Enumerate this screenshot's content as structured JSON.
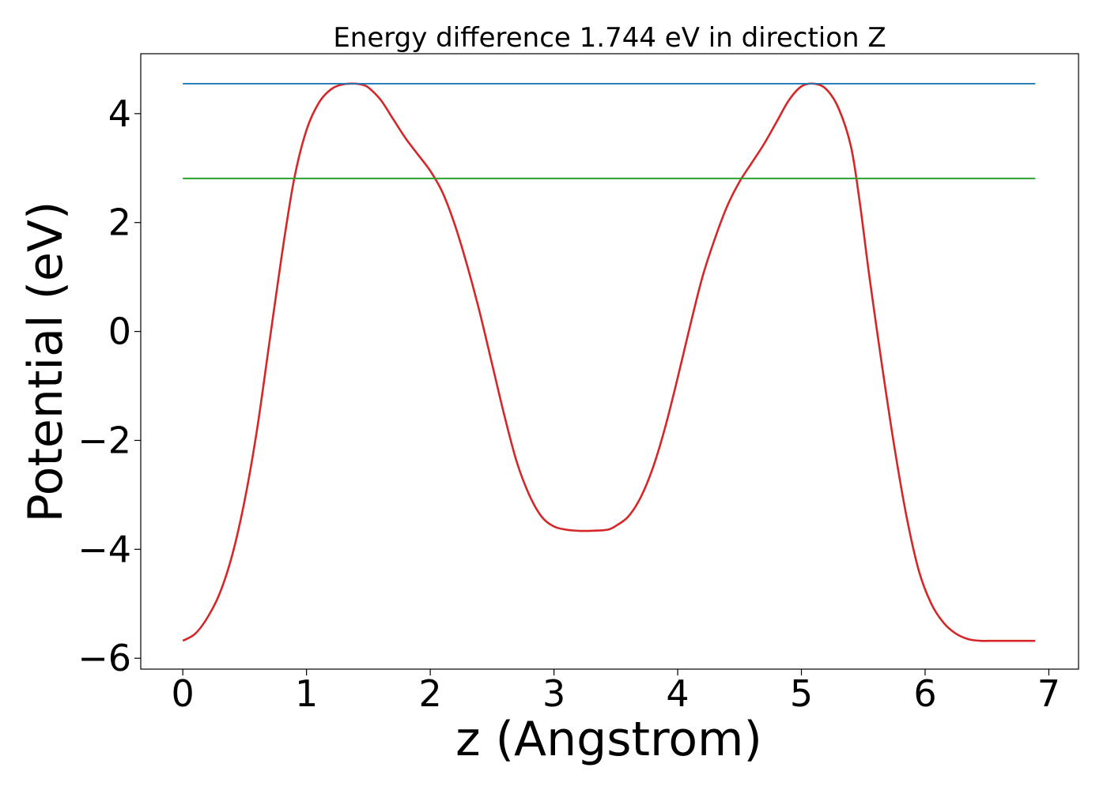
{
  "chart_data": {
    "type": "line",
    "title": "Energy difference 1.744 eV in direction Z",
    "xlabel": "z (Angstrom)",
    "ylabel": "Potential (eV)",
    "xlim": [
      -0.34,
      7.24
    ],
    "ylim": [
      -6.2,
      5.1
    ],
    "xticks": [
      0,
      1,
      2,
      3,
      4,
      5,
      6,
      7
    ],
    "xtick_labels": [
      "0",
      "1",
      "2",
      "3",
      "4",
      "5",
      "6",
      "7"
    ],
    "yticks": [
      -6,
      -4,
      -2,
      0,
      2,
      4
    ],
    "ytick_labels": [
      "−6",
      "−4",
      "−2",
      "0",
      "2",
      "4"
    ],
    "grid": false,
    "series": [
      {
        "color": "#d62728",
        "style": "curve",
        "x": [
          0.0,
          0.1,
          0.2,
          0.3,
          0.4,
          0.5,
          0.6,
          0.7,
          0.8,
          0.9,
          1.0,
          1.1,
          1.2,
          1.3,
          1.4,
          1.45,
          1.5,
          1.6,
          1.7,
          1.8,
          1.9,
          2.0,
          2.1,
          2.2,
          2.3,
          2.4,
          2.5,
          2.6,
          2.7,
          2.8,
          2.9,
          3.0,
          3.1,
          3.2,
          3.3,
          3.4,
          3.45,
          3.5,
          3.6,
          3.7,
          3.8,
          3.9,
          4.0,
          4.1,
          4.2,
          4.3,
          4.4,
          4.5,
          4.6,
          4.7,
          4.8,
          4.9,
          5.0,
          5.1,
          5.2,
          5.3,
          5.4,
          5.47,
          5.55,
          5.65,
          5.75,
          5.85,
          5.95,
          6.05,
          6.15,
          6.25,
          6.35,
          6.45,
          6.55,
          6.65,
          6.75,
          6.85,
          6.89
        ],
        "y": [
          -5.68,
          -5.55,
          -5.25,
          -4.8,
          -4.1,
          -3.1,
          -1.8,
          -0.2,
          1.4,
          2.8,
          3.7,
          4.2,
          4.45,
          4.54,
          4.55,
          4.53,
          4.48,
          4.25,
          3.9,
          3.55,
          3.25,
          2.95,
          2.55,
          1.95,
          1.2,
          0.35,
          -0.6,
          -1.55,
          -2.4,
          -3.0,
          -3.4,
          -3.58,
          -3.64,
          -3.66,
          -3.66,
          -3.65,
          -3.63,
          -3.57,
          -3.4,
          -3.05,
          -2.5,
          -1.75,
          -0.85,
          0.1,
          1.0,
          1.7,
          2.3,
          2.75,
          3.1,
          3.45,
          3.85,
          4.25,
          4.5,
          4.55,
          4.45,
          4.1,
          3.4,
          2.4,
          1.0,
          -0.6,
          -2.1,
          -3.4,
          -4.4,
          -5.0,
          -5.35,
          -5.55,
          -5.65,
          -5.68,
          -5.68,
          -5.68,
          -5.68,
          -5.68,
          -5.68
        ]
      },
      {
        "color": "#1f77b4",
        "style": "line",
        "x": [
          0,
          6.89
        ],
        "y": [
          4.55,
          4.55
        ]
      },
      {
        "color": "#2ca02c",
        "style": "line",
        "x": [
          0,
          6.89
        ],
        "y": [
          2.81,
          2.81
        ]
      }
    ]
  }
}
